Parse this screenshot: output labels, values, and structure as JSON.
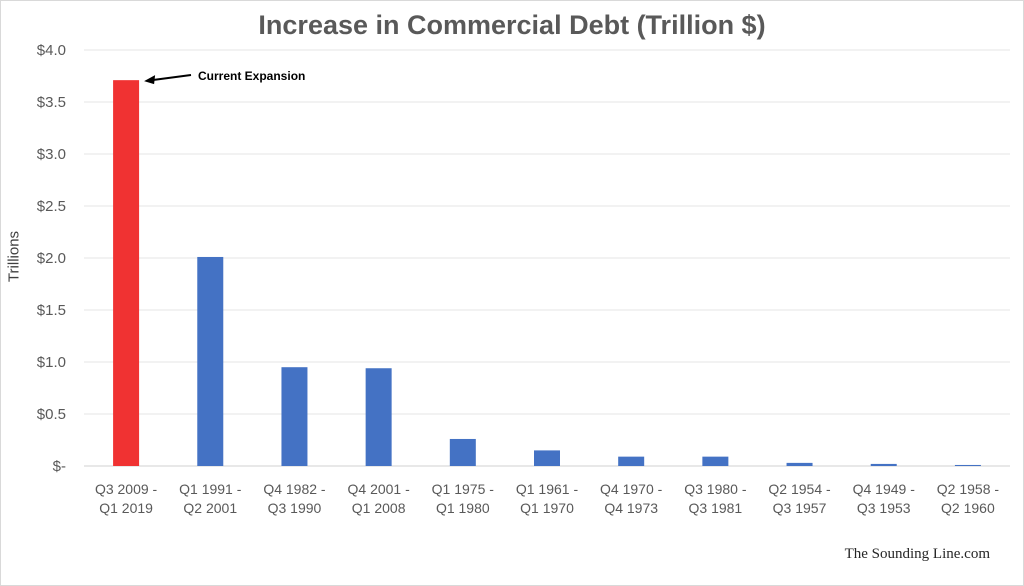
{
  "chart_data": {
    "type": "bar",
    "title": "Increase in Commercial Debt (Trillion $)",
    "ylabel": "Trillions",
    "xlabel": "",
    "ylim": [
      0,
      4.0
    ],
    "yticks": [
      0,
      0.5,
      1.0,
      1.5,
      2.0,
      2.5,
      3.0,
      3.5,
      4.0
    ],
    "ytick_labels": [
      "$-",
      "$0.5",
      "$1.0",
      "$1.5",
      "$2.0",
      "$2.5",
      "$3.0",
      "$3.5",
      "$4.0"
    ],
    "grid": true,
    "categories": [
      [
        "Q3 2009 -",
        "Q1 2019"
      ],
      [
        "Q1 1991 -",
        "Q2 2001"
      ],
      [
        "Q4 1982 -",
        "Q3 1990"
      ],
      [
        "Q4 2001 -",
        "Q1 2008"
      ],
      [
        "Q1 1975 -",
        "Q1 1980"
      ],
      [
        "Q1 1961 -",
        "Q1 1970"
      ],
      [
        "Q4 1970 -",
        "Q4 1973"
      ],
      [
        "Q3 1980 -",
        "Q3 1981"
      ],
      [
        "Q2 1954 -",
        "Q3 1957"
      ],
      [
        "Q4 1949 -",
        "Q3 1953"
      ],
      [
        "Q2 1958 -",
        "Q2 1960"
      ]
    ],
    "values": [
      3.71,
      2.01,
      0.95,
      0.94,
      0.26,
      0.15,
      0.09,
      0.09,
      0.03,
      0.02,
      0.01
    ],
    "bar_colors": [
      "#f03232",
      "#4472c4",
      "#4472c4",
      "#4472c4",
      "#4472c4",
      "#4472c4",
      "#4472c4",
      "#4472c4",
      "#4472c4",
      "#4472c4",
      "#4472c4"
    ],
    "annotation": {
      "text": "Current Expansion",
      "bar_index": 0
    }
  },
  "credit": "The Sounding Line.com"
}
